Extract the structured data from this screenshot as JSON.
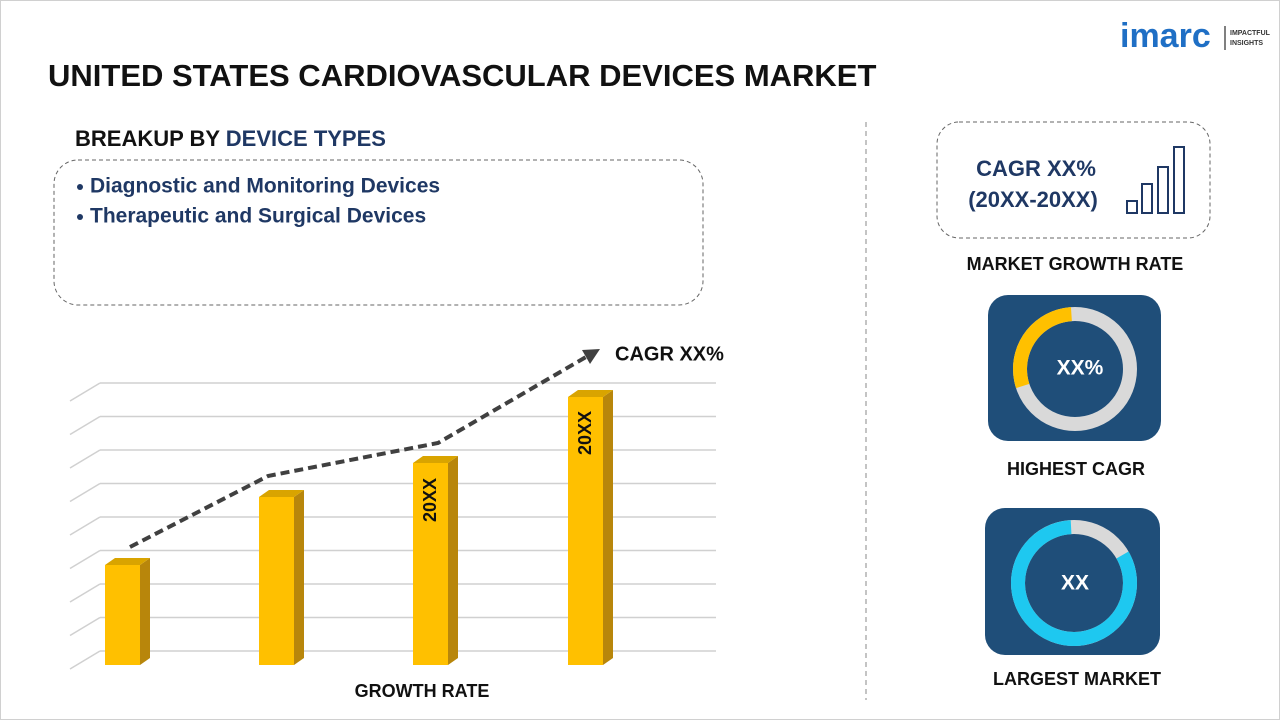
{
  "logo": {
    "name": "imarc",
    "tagline_1": "IMPACTFUL",
    "tagline_2": "INSIGHTS"
  },
  "title": "UNITED STATES CARDIOVASCULAR DEVICES MARKET",
  "breakup": {
    "label": "BREAKUP BY",
    "highlight": "DEVICE TYPES",
    "items": [
      "Diagnostic and Monitoring Devices",
      "Therapeutic and Surgical Devices"
    ]
  },
  "growth_chart": {
    "cagr_label": "CAGR XX%",
    "bar_labels": [
      "20XX",
      "20XX"
    ],
    "axis_label": "GROWTH RATE"
  },
  "market_growth": {
    "cagr": "CAGR XX%",
    "period": "(20XX-20XX)",
    "caption": "MARKET GROWTH RATE"
  },
  "highest_cagr": {
    "value": "XX%",
    "caption": "HIGHEST CAGR"
  },
  "largest_market": {
    "value": "XX",
    "caption": "LARGEST MARKET"
  }
}
